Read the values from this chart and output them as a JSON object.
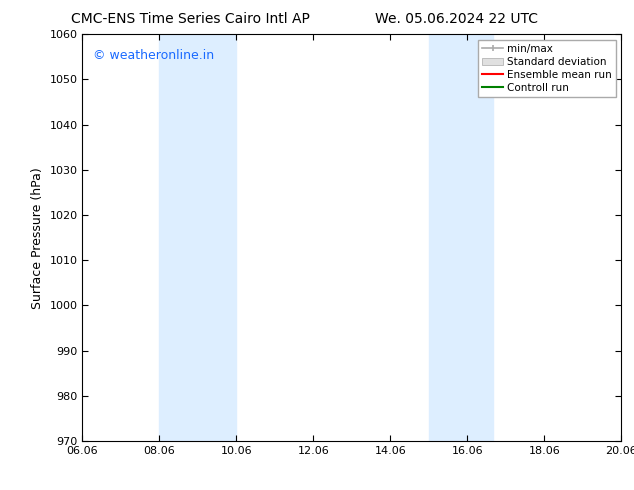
{
  "title_left": "CMC-ENS Time Series Cairo Intl AP",
  "title_right": "We. 05.06.2024 22 UTC",
  "ylabel": "Surface Pressure (hPa)",
  "xlabel": "",
  "ylim": [
    970,
    1060
  ],
  "xlim_start": 6.06,
  "xlim_end": 20.06,
  "xtick_labels": [
    "06.06",
    "08.06",
    "10.06",
    "12.06",
    "14.06",
    "16.06",
    "18.06",
    "20.06"
  ],
  "xtick_positions": [
    6.06,
    8.06,
    10.06,
    12.06,
    14.06,
    16.06,
    18.06,
    20.06
  ],
  "ytick_positions": [
    970,
    980,
    990,
    1000,
    1010,
    1020,
    1030,
    1040,
    1050,
    1060
  ],
  "shaded_bands": [
    {
      "x_start": 8.06,
      "x_end": 10.06
    },
    {
      "x_start": 15.06,
      "x_end": 16.72
    }
  ],
  "shaded_color": "#ddeeff",
  "background_color": "#ffffff",
  "watermark_text": "© weatheronline.in",
  "watermark_color": "#1a6aff",
  "legend_entries": [
    {
      "label": "min/max"
    },
    {
      "label": "Standard deviation"
    },
    {
      "label": "Ensemble mean run"
    },
    {
      "label": "Controll run"
    }
  ],
  "legend_colors": [
    "#aaaaaa",
    "#cccccc",
    "#ff0000",
    "#008000"
  ],
  "title_fontsize": 10,
  "tick_fontsize": 8,
  "ylabel_fontsize": 9,
  "watermark_fontsize": 9,
  "legend_fontsize": 7.5
}
